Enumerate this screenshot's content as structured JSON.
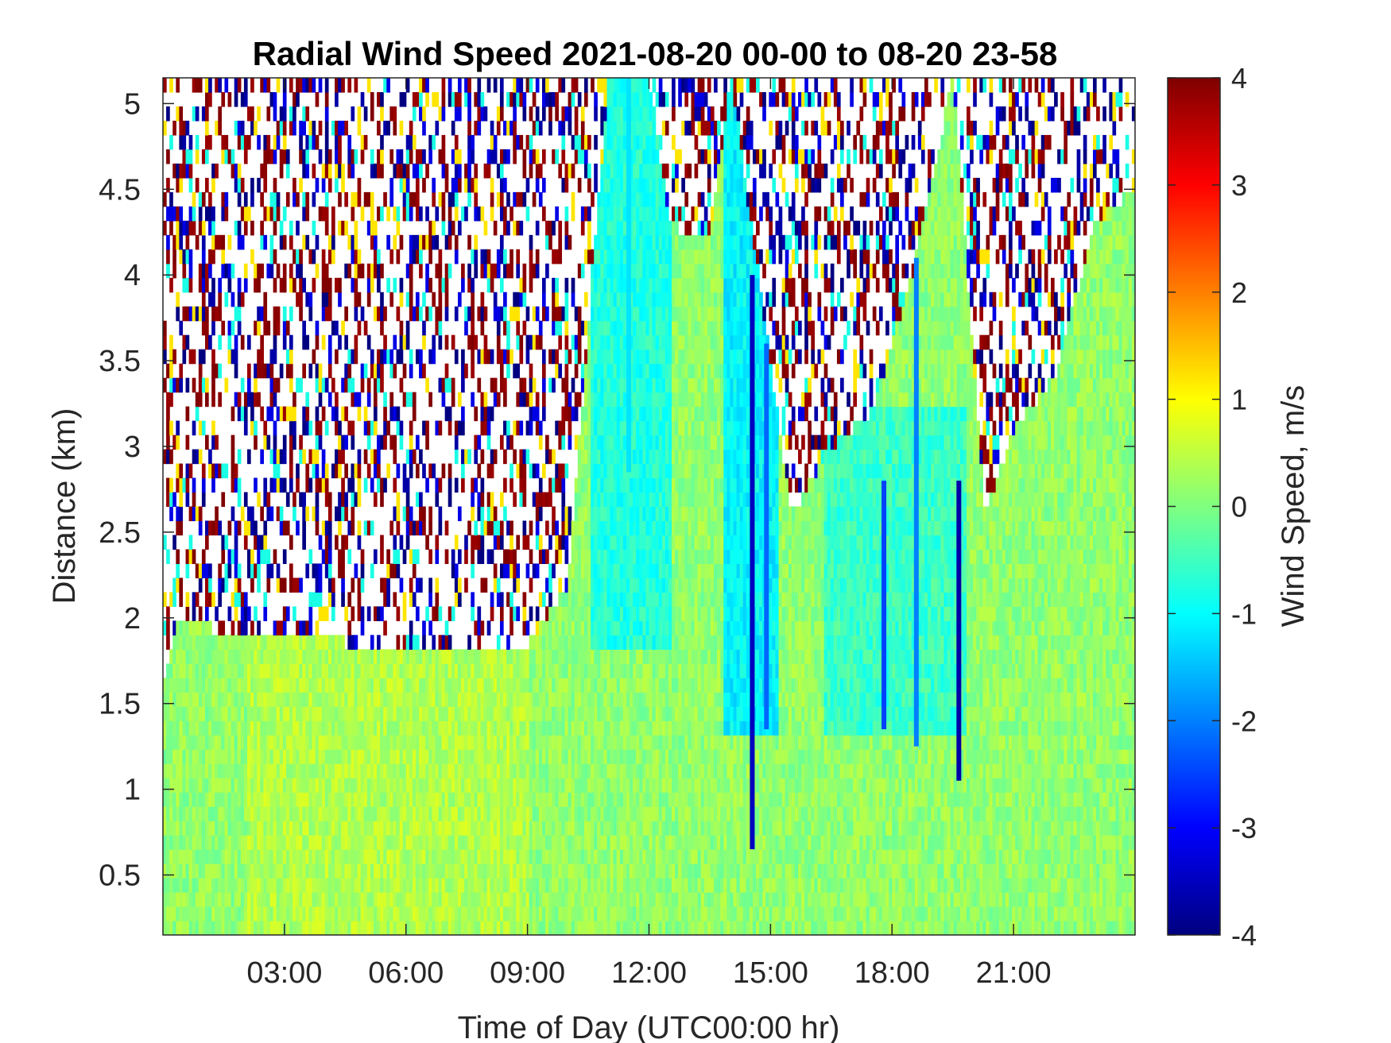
{
  "chart_data": {
    "type": "heatmap",
    "title": "Radial Wind Speed 2021-08-20 00-00 to 08-20 23-58",
    "xlabel": "Time of Day (UTC00:00 hr)",
    "ylabel": "Distance (km)",
    "colorbar_label": "Wind Speed, m/s",
    "colormap": "jet",
    "x_range_hours": [
      0,
      24
    ],
    "y_range_km": [
      0.15,
      5.15
    ],
    "color_range": [
      -4,
      4
    ],
    "x_ticks": [
      {
        "value": 3,
        "label": "03:00"
      },
      {
        "value": 6,
        "label": "06:00"
      },
      {
        "value": 9,
        "label": "09:00"
      },
      {
        "value": 12,
        "label": "12:00"
      },
      {
        "value": 15,
        "label": "15:00"
      },
      {
        "value": 18,
        "label": "18:00"
      },
      {
        "value": 21,
        "label": "21:00"
      }
    ],
    "y_ticks": [
      {
        "value": 0.5,
        "label": "0.5"
      },
      {
        "value": 1,
        "label": "1"
      },
      {
        "value": 1.5,
        "label": "1.5"
      },
      {
        "value": 2,
        "label": "2"
      },
      {
        "value": 2.5,
        "label": "2.5"
      },
      {
        "value": 3,
        "label": "3"
      },
      {
        "value": 3.5,
        "label": "3.5"
      },
      {
        "value": 4,
        "label": "4"
      },
      {
        "value": 4.5,
        "label": "4.5"
      },
      {
        "value": 5,
        "label": "5"
      }
    ],
    "colorbar_ticks": [
      {
        "value": 4,
        "label": "4"
      },
      {
        "value": 3,
        "label": "3"
      },
      {
        "value": 2,
        "label": "2"
      },
      {
        "value": 1,
        "label": "1"
      },
      {
        "value": 0,
        "label": "0"
      },
      {
        "value": -1,
        "label": "-1"
      },
      {
        "value": -2,
        "label": "-2"
      },
      {
        "value": -3,
        "label": "-3"
      },
      {
        "value": -4,
        "label": "-4"
      }
    ],
    "signal_top_profile_km": [
      {
        "hour": 0.0,
        "top": 1.6
      },
      {
        "hour": 0.4,
        "top": 2.0
      },
      {
        "hour": 1.0,
        "top": 1.95
      },
      {
        "hour": 2.0,
        "top": 1.9
      },
      {
        "hour": 5.0,
        "top": 1.85
      },
      {
        "hour": 9.0,
        "top": 1.85
      },
      {
        "hour": 10.0,
        "top": 2.2
      },
      {
        "hour": 11.0,
        "top": 5.15
      },
      {
        "hour": 12.0,
        "top": 5.15
      },
      {
        "hour": 12.5,
        "top": 4.3
      },
      {
        "hour": 13.5,
        "top": 4.2
      },
      {
        "hour": 14.0,
        "top": 5.15
      },
      {
        "hour": 14.7,
        "top": 4.0
      },
      {
        "hour": 15.5,
        "top": 2.6
      },
      {
        "hour": 16.5,
        "top": 3.0
      },
      {
        "hour": 17.5,
        "top": 3.2
      },
      {
        "hour": 18.5,
        "top": 4.0
      },
      {
        "hour": 19.5,
        "top": 5.15
      },
      {
        "hour": 20.3,
        "top": 2.6
      },
      {
        "hour": 21.0,
        "top": 3.1
      },
      {
        "hour": 22.0,
        "top": 3.4
      },
      {
        "hour": 23.0,
        "top": 4.3
      },
      {
        "hour": 24.0,
        "top": 4.5
      }
    ],
    "low_speed_streaks": [
      {
        "hour": 11.5,
        "bottom_km": 2.85,
        "top_km": 5.15,
        "value": -1.2
      },
      {
        "hour": 14.55,
        "bottom_km": 0.65,
        "top_km": 4.0,
        "value": -3.5
      },
      {
        "hour": 14.9,
        "bottom_km": 1.35,
        "top_km": 3.6,
        "value": -2.2
      },
      {
        "hour": 17.8,
        "bottom_km": 1.35,
        "top_km": 2.8,
        "value": -2.5
      },
      {
        "hour": 18.6,
        "bottom_km": 1.25,
        "top_km": 4.1,
        "value": -2.0
      },
      {
        "hour": 19.65,
        "bottom_km": 1.05,
        "top_km": 2.8,
        "value": -3.7
      }
    ]
  }
}
